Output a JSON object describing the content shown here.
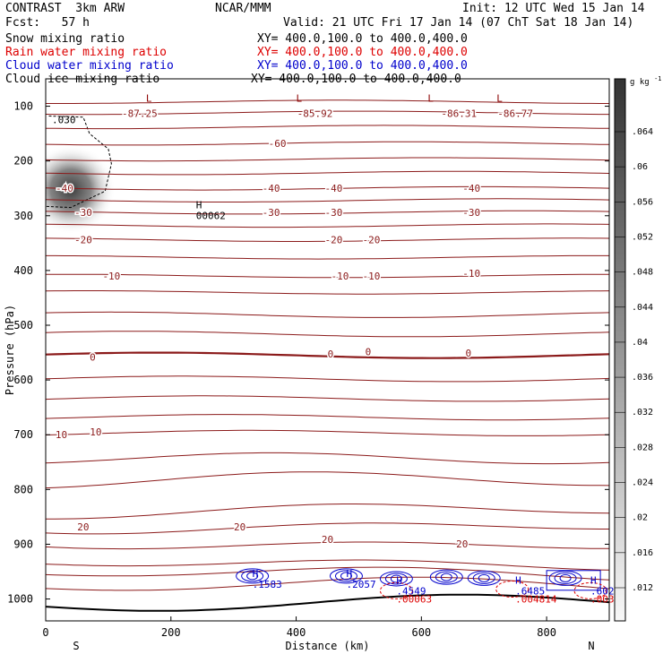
{
  "header": {
    "title": "CONTRAST  3km ARW",
    "forecast": "Fcst:   57 h",
    "center": "NCAR/MMM",
    "init": "Init: 12 UTC Wed 15 Jan 14",
    "valid": "Valid: 21 UTC Fri 17 Jan 14 (07 ChT Sat 18 Jan 14)"
  },
  "legend": [
    {
      "label": "Snow mixing ratio",
      "xy": "XY= 400.0,100.0 to 400.0,400.0",
      "color": "#000000"
    },
    {
      "label": "Rain water mixing ratio",
      "xy": "XY= 400.0,100.0 to 400.0,400.0",
      "color": "#dd0000"
    },
    {
      "label": "Cloud water mixing ratio",
      "xy": "XY= 400.0,100.0 to 400.0,400.0",
      "color": "#0000cc"
    },
    {
      "label": "Cloud ice mixing ratio",
      "xy": "XY= 400.0,100.0 to 400.0,400.0",
      "color": "#000000"
    }
  ],
  "chart_data": {
    "type": "cross-section",
    "xlabel": "Distance (km)",
    "ylabel": "Pressure (hPa)",
    "xlim": [
      0,
      900
    ],
    "ylim": [
      1040,
      50
    ],
    "x_ticks": [
      "0",
      "200",
      "400",
      "600",
      "800"
    ],
    "y_ticks": [
      "100",
      "200",
      "300",
      "400",
      "500",
      "600",
      "700",
      "800",
      "900",
      "1000"
    ],
    "end_labels": {
      "left": "S",
      "right": "N"
    },
    "temperature_contours": [
      {
        "p": 1008,
        "label": ""
      },
      {
        "p": 975,
        "label": ""
      },
      {
        "p": 953,
        "label": ""
      },
      {
        "p": 935,
        "label": ""
      },
      {
        "p": 900,
        "label": "20"
      },
      {
        "p": 868,
        "label": "20"
      },
      {
        "p": 838,
        "label": ""
      },
      {
        "p": 783,
        "label": ""
      },
      {
        "p": 743,
        "label": ""
      },
      {
        "p": 697,
        "label": "10"
      },
      {
        "p": 668,
        "label": ""
      },
      {
        "p": 634,
        "label": ""
      },
      {
        "p": 598,
        "label": ""
      },
      {
        "p": 555,
        "label": "0"
      },
      {
        "p": 516,
        "label": ""
      },
      {
        "p": 481,
        "label": ""
      },
      {
        "p": 440,
        "label": ""
      },
      {
        "p": 410,
        "label": "-10"
      },
      {
        "p": 376,
        "label": ""
      },
      {
        "p": 344,
        "label": "-20"
      },
      {
        "p": 318,
        "label": ""
      },
      {
        "p": 294,
        "label": "-30"
      },
      {
        "p": 272,
        "label": ""
      },
      {
        "p": 250,
        "label": "-40"
      },
      {
        "p": 222,
        "label": ""
      },
      {
        "p": 197,
        "label": ""
      },
      {
        "p": 168,
        "label": "-60"
      },
      {
        "p": 138,
        "label": ""
      },
      {
        "p": 112,
        "label": ""
      },
      {
        "p": 92,
        "label": ""
      }
    ],
    "contour_labels": [
      {
        "x": 150,
        "p": 113,
        "text": "-87.25"
      },
      {
        "x": 430,
        "p": 113,
        "text": "-85.92"
      },
      {
        "x": 660,
        "p": 113,
        "text": "-86.31"
      },
      {
        "x": 750,
        "p": 113,
        "text": "-86.77"
      },
      {
        "x": 370,
        "p": 168,
        "text": "-60"
      },
      {
        "x": 360,
        "p": 250,
        "text": "-40"
      },
      {
        "x": 460,
        "p": 250,
        "text": "-40"
      },
      {
        "x": 680,
        "p": 250,
        "text": "-40"
      },
      {
        "x": 30,
        "p": 250,
        "text": "-40"
      },
      {
        "x": 60,
        "p": 294,
        "text": "-30"
      },
      {
        "x": 360,
        "p": 294,
        "text": "-30"
      },
      {
        "x": 460,
        "p": 294,
        "text": "-30"
      },
      {
        "x": 680,
        "p": 294,
        "text": "-30"
      },
      {
        "x": 60,
        "p": 344,
        "text": "-20"
      },
      {
        "x": 460,
        "p": 344,
        "text": "-20"
      },
      {
        "x": 520,
        "p": 344,
        "text": "-20"
      },
      {
        "x": 105,
        "p": 410,
        "text": "-10"
      },
      {
        "x": 470,
        "p": 410,
        "text": "-10"
      },
      {
        "x": 520,
        "p": 410,
        "text": "-10"
      },
      {
        "x": 680,
        "p": 405,
        "text": "-10"
      },
      {
        "x": 75,
        "p": 558,
        "text": "0"
      },
      {
        "x": 455,
        "p": 552,
        "text": "0"
      },
      {
        "x": 515,
        "p": 548,
        "text": "0"
      },
      {
        "x": 675,
        "p": 551,
        "text": "0"
      },
      {
        "x": 25,
        "p": 700,
        "text": "10"
      },
      {
        "x": 80,
        "p": 695,
        "text": "10"
      },
      {
        "x": 60,
        "p": 868,
        "text": "20"
      },
      {
        "x": 310,
        "p": 868,
        "text": "20"
      },
      {
        "x": 450,
        "p": 891,
        "text": "20"
      },
      {
        "x": 665,
        "p": 899,
        "text": "20"
      }
    ],
    "extrema": [
      {
        "x": 240,
        "p": 290,
        "symbol": "H",
        "value": "00062",
        "color": "#000000"
      },
      {
        "x": 160,
        "p": 95,
        "symbol": "L",
        "value": "",
        "color": "#8b0000"
      },
      {
        "x": 400,
        "p": 95,
        "symbol": "L",
        "value": "",
        "color": "#8b0000"
      },
      {
        "x": 610,
        "p": 95,
        "symbol": "L",
        "value": "",
        "color": "#8b0000"
      },
      {
        "x": 720,
        "p": 95,
        "symbol": "L",
        "value": "",
        "color": "#8b0000"
      },
      {
        "x": 10,
        "p": 115,
        "symbol": "",
        "value": ".030",
        "color": "#000000"
      },
      {
        "x": 330,
        "p": 963,
        "symbol": "H",
        "value": ".1583",
        "color": "#0000cc"
      },
      {
        "x": 480,
        "p": 963,
        "symbol": "H",
        "value": ".2057",
        "color": "#0000cc"
      },
      {
        "x": 560,
        "p": 975,
        "symbol": "H",
        "value": ".4549",
        "color": "#0000cc"
      },
      {
        "x": 560,
        "p": 990,
        "symbol": "",
        "value": ".00063",
        "color": "#dd0000"
      },
      {
        "x": 750,
        "p": 975,
        "symbol": "H",
        "value": ".6485",
        "color": "#0000cc"
      },
      {
        "x": 750,
        "p": 990,
        "symbol": "",
        "value": ".004814",
        "color": "#dd0000"
      },
      {
        "x": 870,
        "p": 975,
        "symbol": "H",
        "value": ".602",
        "color": "#0000cc"
      },
      {
        "x": 870,
        "p": 990,
        "symbol": "",
        "value": ".003",
        "color": "#dd0000"
      }
    ],
    "shaded_field": {
      "name": "Snow mixing ratio",
      "x": 40,
      "p": 252,
      "max": 0.064
    },
    "colorbar": {
      "unit": "g kg",
      "unit_sup": "-1",
      "ticks": [
        ".064",
        ".06",
        ".056",
        ".052",
        ".048",
        ".044",
        ".04",
        ".036",
        ".032",
        ".028",
        ".024",
        ".02",
        ".016",
        ".012"
      ]
    }
  }
}
